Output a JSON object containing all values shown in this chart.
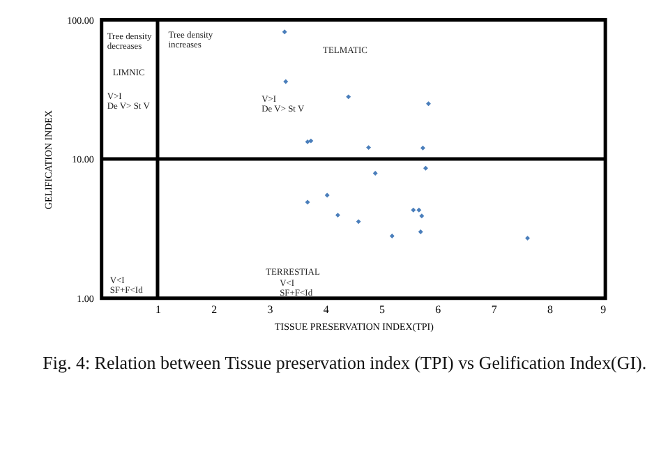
{
  "chart_data": {
    "type": "scatter",
    "xlabel": "TISSUE PRESERVATION INDEX(TPI)",
    "ylabel": "GELIFICATION INDEX",
    "series": [
      {
        "color": "#4a7ebb",
        "x": [
          3.27,
          3.29,
          3.68,
          3.74,
          3.68,
          4.03,
          4.22,
          4.41,
          5.84,
          4.77,
          5.74,
          5.79,
          4.89,
          4.59,
          5.57,
          5.67,
          5.72,
          5.7,
          5.19,
          7.61
        ],
        "values": [
          82,
          36,
          13.3,
          13.5,
          4.9,
          5.5,
          3.95,
          28,
          25,
          12.1,
          12,
          8.6,
          7.9,
          3.55,
          4.3,
          4.3,
          3.9,
          3.0,
          2.8,
          2.7
        ]
      }
    ],
    "xlim": [
      0,
      9
    ],
    "xticks": [
      1,
      2,
      3,
      4,
      5,
      6,
      7,
      8,
      9
    ],
    "ylim": [
      1,
      100
    ],
    "yticks": [
      {
        "value": 1,
        "label": "1.00"
      },
      {
        "value": 10,
        "label": "10.00"
      },
      {
        "value": 100,
        "label": "100.00"
      }
    ],
    "log": "y",
    "grid": false,
    "marker": "diamond",
    "ref_lines": [
      {
        "axis": "x",
        "value": 1,
        "color": "#000000"
      },
      {
        "axis": "y",
        "value": 10,
        "color": "#000000"
      }
    ],
    "annotations": [
      "Tree density\ndecreases",
      "Tree density\nincreases",
      "TELMATIC",
      "LIMNIC",
      "V>I\nDe V> St V",
      "V>I\nDe V> St V",
      "V<I\nSF+F<Id",
      "TERRESTIAL",
      "V<I\nSF+F<Id",
      "Fig. 4: Relation between Tissue preservation index (TPI) vs Gelification Index(GI)."
    ]
  }
}
